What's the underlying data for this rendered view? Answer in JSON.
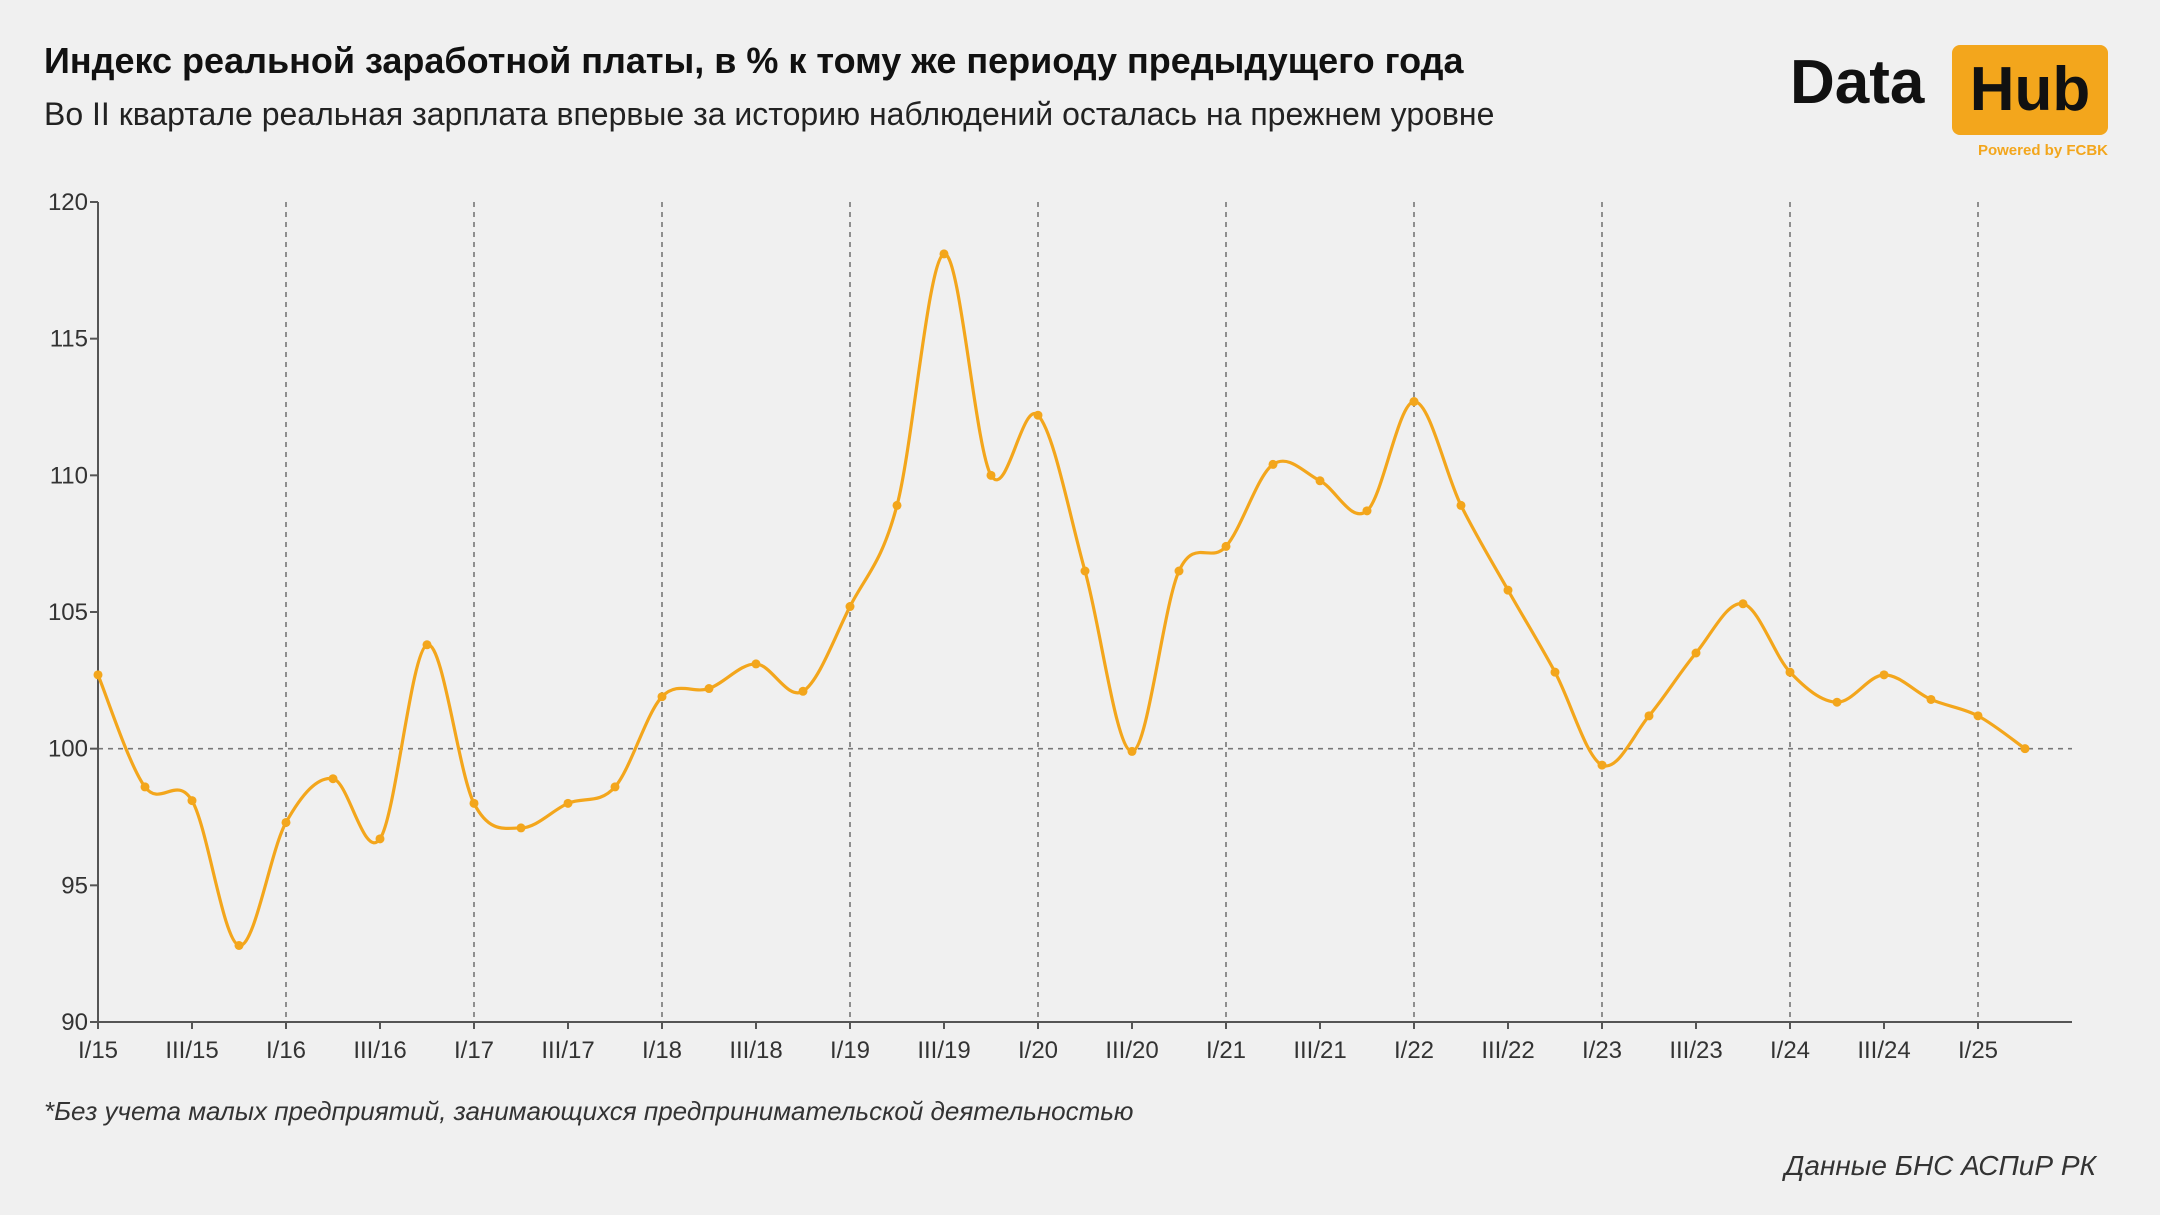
{
  "header": {
    "title": "Индекс реальной заработной платы, в % к тому же периоду предыдущего года",
    "subtitle": "Во II квартале реальная зарплата впервые за историю наблюдений осталась на прежнем уровне"
  },
  "logo": {
    "word1": "Data",
    "word2": "Hub",
    "powered": "Powered by FCBK"
  },
  "footnote": "*Без учета малых предприятий, занимающихся предпринимательской деятельностью",
  "source": "Данные БНС АСПиР РК",
  "colors": {
    "line": "#f3a61c",
    "axis": "#555555",
    "grid": "#777777",
    "background": "#f0f0f0"
  },
  "chart_data": {
    "type": "line",
    "title": "Индекс реальной заработной платы, в % к тому же периоду предыдущего года",
    "subtitle": "Во II квартале реальная зарплата впервые за историю наблюдений осталась на прежнем уровне",
    "xlabel": "",
    "ylabel": "",
    "ylim": [
      90,
      120
    ],
    "yticks": [
      90,
      95,
      100,
      105,
      110,
      115,
      120
    ],
    "x_tick_labels": [
      "I/15",
      "III/15",
      "I/16",
      "III/16",
      "I/17",
      "III/17",
      "I/18",
      "III/18",
      "I/19",
      "III/19",
      "I/20",
      "III/20",
      "I/21",
      "III/21",
      "I/22",
      "III/22",
      "I/23",
      "III/23",
      "I/24",
      "III/24",
      "I/25"
    ],
    "vertical_gridlines_at": [
      "I/16",
      "I/17",
      "I/18",
      "I/19",
      "I/20",
      "I/21",
      "I/22",
      "I/23",
      "I/24",
      "I/25"
    ],
    "reference_line": 100,
    "grid": false,
    "legend": "none",
    "series": [
      {
        "x": [
          "I/15",
          "II/15",
          "III/15",
          "IV/15",
          "I/16",
          "II/16",
          "III/16",
          "IV/16",
          "I/17",
          "II/17",
          "III/17",
          "IV/17",
          "I/18",
          "II/18",
          "III/18",
          "IV/18",
          "I/19",
          "II/19",
          "III/19",
          "IV/19",
          "I/20",
          "II/20",
          "III/20",
          "IV/20",
          "I/21",
          "II/21",
          "III/21",
          "IV/21",
          "I/22",
          "II/22",
          "III/22",
          "IV/22",
          "I/23",
          "II/23",
          "III/23",
          "IV/23",
          "I/24",
          "II/24",
          "III/24",
          "IV/24",
          "I/25",
          "II/25"
        ],
        "values": [
          102.7,
          98.6,
          98.1,
          92.8,
          97.3,
          98.9,
          96.7,
          103.8,
          98.0,
          97.1,
          98.0,
          98.6,
          101.9,
          102.2,
          103.1,
          102.1,
          105.2,
          108.9,
          118.1,
          110.0,
          112.2,
          106.5,
          99.9,
          106.5,
          107.4,
          110.4,
          109.8,
          108.7,
          112.7,
          108.9,
          105.8,
          102.8,
          99.4,
          101.2,
          103.5,
          105.3,
          102.8,
          101.7,
          102.7,
          101.8,
          101.2,
          100.0
        ]
      }
    ]
  }
}
